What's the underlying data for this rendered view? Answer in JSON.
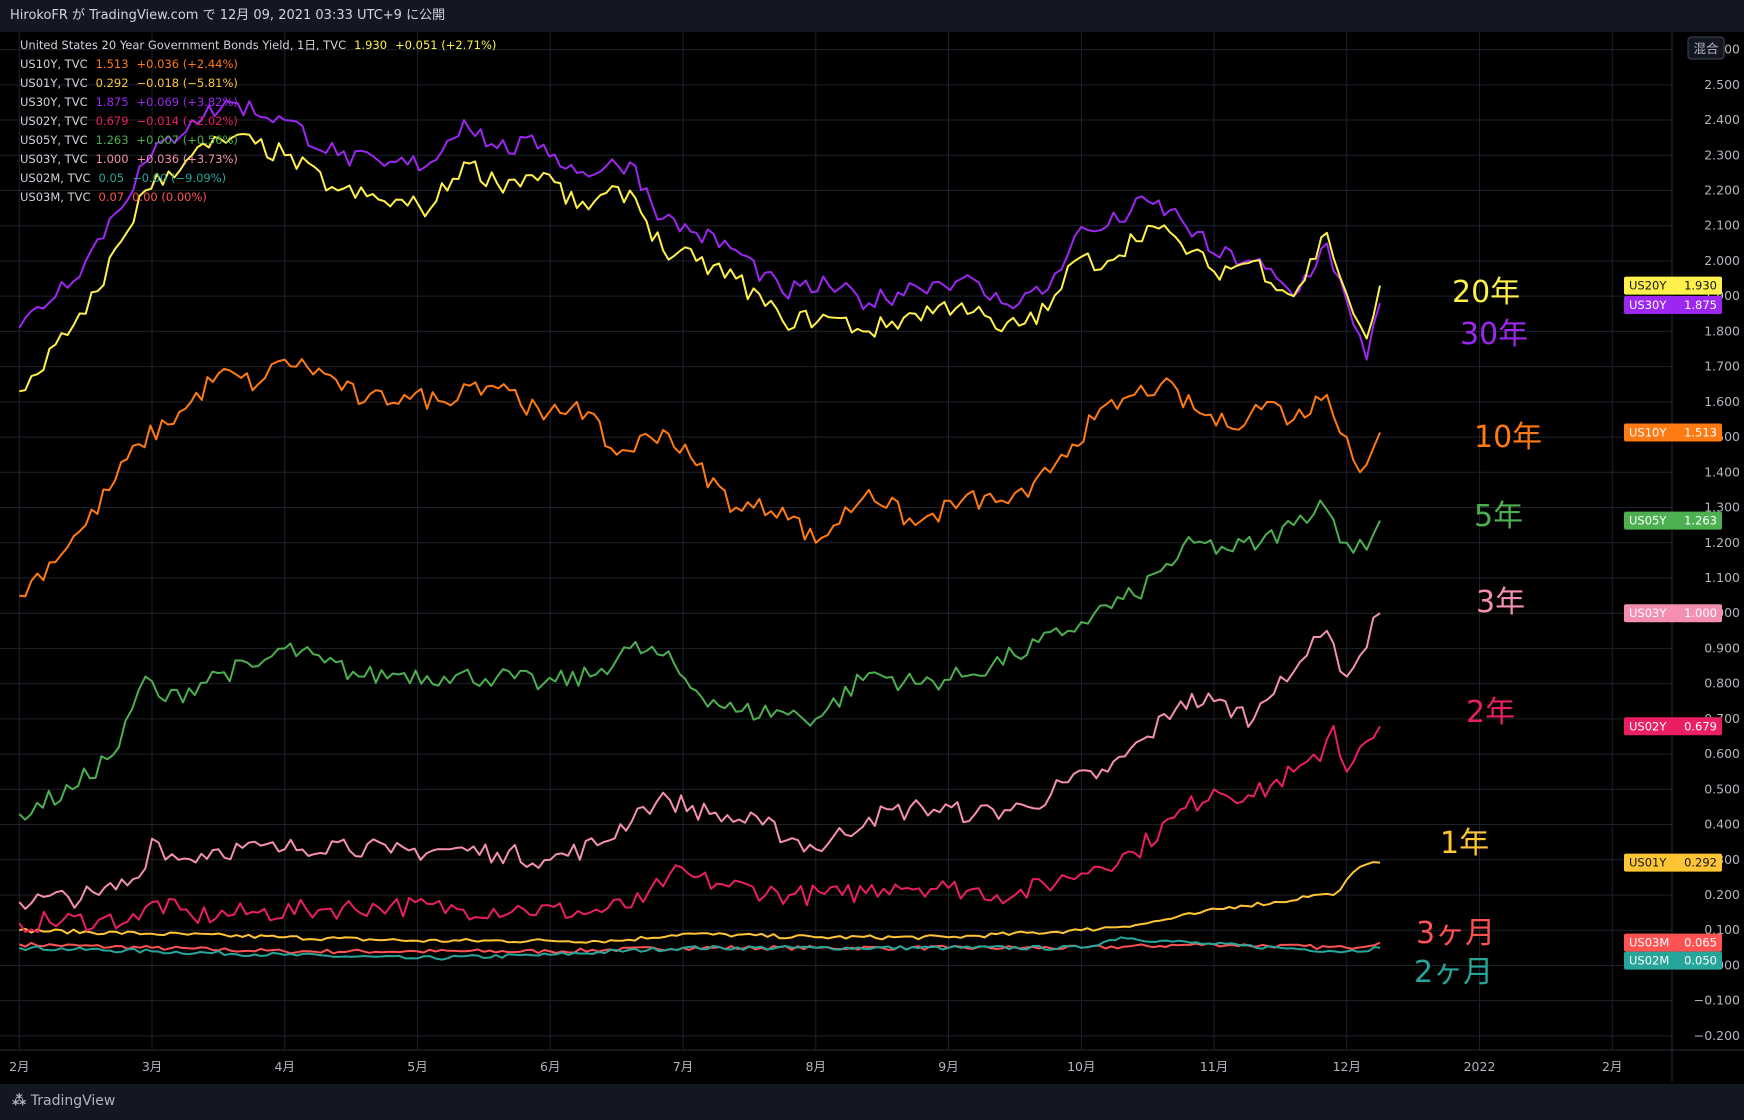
{
  "header": {
    "publisher": "HirokoFR が TradingView.com で 12月 09, 2021 03:33 UTC+9 に公開"
  },
  "footer": {
    "brand": "TradingView"
  },
  "scale_button": "混合",
  "colors": {
    "bg": "#000000",
    "grid": "#1e222d",
    "axis_text": "#b2b5be",
    "US20Y": "#fff04b",
    "US30Y": "#9c27f0",
    "US10Y": "#ff7a12",
    "US05Y": "#4caf50",
    "US03Y": "#f48fb1",
    "US02Y": "#e91e63",
    "US01Y": "#ffc535",
    "US03M": "#ff5252",
    "US02M": "#26a69a"
  },
  "legend": [
    {
      "sym": "United States 20 Year Government Bonds Yield, 1日, TVC",
      "val": "1.930",
      "chg": "+0.051 (+2.71%)",
      "key": "US20Y"
    },
    {
      "sym": "US10Y, TVC",
      "val": "1.513",
      "chg": "+0.036 (+2.44%)",
      "key": "US10Y"
    },
    {
      "sym": "US01Y, TVC",
      "val": "0.292",
      "chg": "−0.018 (−5.81%)",
      "key": "US01Y"
    },
    {
      "sym": "US30Y, TVC",
      "val": "1.875",
      "chg": "+0.069 (+3.82%)",
      "key": "US30Y"
    },
    {
      "sym": "US02Y, TVC",
      "val": "0.679",
      "chg": "−0.014 (−2.02%)",
      "key": "US02Y"
    },
    {
      "sym": "US05Y, TVC",
      "val": "1.263",
      "chg": "+0.007 (+0.56%)",
      "key": "US05Y"
    },
    {
      "sym": "US03Y, TVC",
      "val": "1.000",
      "chg": "+0.036 (+3.73%)",
      "key": "US03Y"
    },
    {
      "sym": "US02M, TVC",
      "val": "0.05",
      "chg": "−0.00 (−9.09%)",
      "key": "US02M"
    },
    {
      "sym": "US03M, TVC",
      "val": "0.07",
      "chg": "0.00 (0.00%)",
      "key": "US03M"
    }
  ],
  "annotations": [
    {
      "text": "20年",
      "key": "US20Y"
    },
    {
      "text": "30年",
      "key": "US30Y"
    },
    {
      "text": "10年",
      "key": "US10Y"
    },
    {
      "text": "5年",
      "key": "US05Y"
    },
    {
      "text": "3年",
      "key": "US03Y"
    },
    {
      "text": "2年",
      "key": "US02Y"
    },
    {
      "text": "1年",
      "key": "US01Y"
    },
    {
      "text": "3ヶ月",
      "key": "US03M"
    },
    {
      "text": "2ヶ月",
      "key": "US02M"
    }
  ],
  "chart_data": {
    "type": "line",
    "x_tick_labels": [
      "2月",
      "3月",
      "4月",
      "5月",
      "6月",
      "7月",
      "8月",
      "9月",
      "10月",
      "11月",
      "12月",
      "2022",
      "2月"
    ],
    "x_tick_month_index": [
      0,
      1,
      2,
      3,
      4,
      5,
      6,
      7,
      8,
      9,
      10,
      11,
      12
    ],
    "x_range_months": [
      -0.07,
      12.45
    ],
    "y_ticks": [
      "2.600",
      "2.500",
      "2.400",
      "2.300",
      "2.200",
      "2.100",
      "2.000",
      "1.900",
      "1.800",
      "1.700",
      "1.600",
      "1.500",
      "1.400",
      "1.300",
      "1.200",
      "1.100",
      "1.000",
      "0.900",
      "0.800",
      "0.700",
      "0.600",
      "0.500",
      "0.400",
      "0.300",
      "0.200",
      "0.100",
      "0.000",
      "−0.100",
      "−0.200"
    ],
    "y_range": [
      -0.24,
      2.65
    ],
    "grid": true,
    "series": [
      {
        "name": "US20Y",
        "label": "US20Y",
        "last": "1.930",
        "x": [
          0,
          0.5,
          0.95,
          1.3,
          1.6,
          2.0,
          2.4,
          2.75,
          3.1,
          3.35,
          3.6,
          3.95,
          4.2,
          4.6,
          4.85,
          5.1,
          5.4,
          5.75,
          6.1,
          6.4,
          6.75,
          7.1,
          7.4,
          7.75,
          7.95,
          8.2,
          8.5,
          8.75,
          9.0,
          9.3,
          9.6,
          9.85,
          10.05,
          10.15,
          10.25
        ],
        "y": [
          1.63,
          1.85,
          2.2,
          2.3,
          2.35,
          2.3,
          2.2,
          2.17,
          2.15,
          2.28,
          2.22,
          2.25,
          2.15,
          2.2,
          2.03,
          2.0,
          1.95,
          1.83,
          1.84,
          1.8,
          1.85,
          1.88,
          1.8,
          1.86,
          2.0,
          2.0,
          2.1,
          2.05,
          1.97,
          2.0,
          1.9,
          2.08,
          1.85,
          1.78,
          1.93
        ]
      },
      {
        "name": "US30Y",
        "label": "US30Y",
        "last": "1.875",
        "x": [
          0,
          0.5,
          0.95,
          1.3,
          1.6,
          2.0,
          2.4,
          2.75,
          3.1,
          3.35,
          3.6,
          3.95,
          4.2,
          4.6,
          4.85,
          5.1,
          5.4,
          5.75,
          6.1,
          6.4,
          6.75,
          7.1,
          7.4,
          7.75,
          7.95,
          8.2,
          8.5,
          8.75,
          9.0,
          9.3,
          9.6,
          9.85,
          10.05,
          10.15,
          10.25
        ],
        "y": [
          1.81,
          2.0,
          2.28,
          2.4,
          2.45,
          2.4,
          2.3,
          2.27,
          2.28,
          2.4,
          2.32,
          2.33,
          2.25,
          2.28,
          2.12,
          2.08,
          2.03,
          1.91,
          1.93,
          1.88,
          1.93,
          1.95,
          1.88,
          1.92,
          2.07,
          2.1,
          2.17,
          2.12,
          2.02,
          2.0,
          1.9,
          2.05,
          1.82,
          1.72,
          1.88
        ]
      },
      {
        "name": "US10Y",
        "label": "US10Y",
        "last": "1.513",
        "x": [
          0,
          0.5,
          0.9,
          1.25,
          1.5,
          1.8,
          2.0,
          2.3,
          2.6,
          2.9,
          3.2,
          3.35,
          3.65,
          3.95,
          4.2,
          4.5,
          4.85,
          5.1,
          5.4,
          5.75,
          6.0,
          6.4,
          6.75,
          7.1,
          7.4,
          7.6,
          7.85,
          8.1,
          8.4,
          8.6,
          8.85,
          9.1,
          9.4,
          9.6,
          9.85,
          10.0,
          10.1,
          10.25
        ],
        "y": [
          1.05,
          1.25,
          1.48,
          1.58,
          1.68,
          1.65,
          1.72,
          1.68,
          1.6,
          1.62,
          1.6,
          1.65,
          1.65,
          1.55,
          1.6,
          1.45,
          1.52,
          1.42,
          1.3,
          1.3,
          1.2,
          1.35,
          1.25,
          1.32,
          1.32,
          1.33,
          1.45,
          1.55,
          1.62,
          1.65,
          1.58,
          1.53,
          1.6,
          1.55,
          1.62,
          1.5,
          1.4,
          1.513
        ]
      },
      {
        "name": "US05Y",
        "label": "US05Y",
        "last": "1.263",
        "x": [
          0,
          0.4,
          0.75,
          0.95,
          1.1,
          1.5,
          1.8,
          2.0,
          2.3,
          2.6,
          2.9,
          3.2,
          3.6,
          3.95,
          4.3,
          4.6,
          4.85,
          5.1,
          5.4,
          5.75,
          6.0,
          6.4,
          6.75,
          7.1,
          7.5,
          7.9,
          8.1,
          8.4,
          8.6,
          8.85,
          9.1,
          9.35,
          9.6,
          9.8,
          10.0,
          10.15,
          10.25
        ],
        "y": [
          0.43,
          0.5,
          0.62,
          0.82,
          0.75,
          0.83,
          0.85,
          0.9,
          0.86,
          0.82,
          0.83,
          0.82,
          0.82,
          0.8,
          0.82,
          0.9,
          0.88,
          0.78,
          0.72,
          0.72,
          0.7,
          0.83,
          0.8,
          0.82,
          0.88,
          0.95,
          1.0,
          1.05,
          1.12,
          1.2,
          1.18,
          1.2,
          1.25,
          1.32,
          1.2,
          1.18,
          1.263
        ]
      },
      {
        "name": "US03Y",
        "label": "US03Y",
        "last": "1.000",
        "x": [
          0,
          0.6,
          0.9,
          1.0,
          1.2,
          1.5,
          2.0,
          2.4,
          2.8,
          3.2,
          3.6,
          4.0,
          4.4,
          4.7,
          4.9,
          5.2,
          5.6,
          6.0,
          6.4,
          6.8,
          7.2,
          7.6,
          7.9,
          8.2,
          8.5,
          8.75,
          9.0,
          9.3,
          9.5,
          9.7,
          9.85,
          10.0,
          10.1,
          10.25
        ],
        "y": [
          0.18,
          0.2,
          0.25,
          0.36,
          0.3,
          0.33,
          0.33,
          0.35,
          0.32,
          0.33,
          0.32,
          0.3,
          0.35,
          0.45,
          0.47,
          0.43,
          0.4,
          0.33,
          0.42,
          0.45,
          0.43,
          0.45,
          0.52,
          0.55,
          0.65,
          0.75,
          0.75,
          0.7,
          0.82,
          0.88,
          0.95,
          0.82,
          0.88,
          1.0
        ]
      },
      {
        "name": "US02Y",
        "label": "US02Y",
        "last": "0.679",
        "x": [
          0,
          0.6,
          0.9,
          1.0,
          1.3,
          1.8,
          2.3,
          2.8,
          3.3,
          3.8,
          4.3,
          4.7,
          4.9,
          5.3,
          5.8,
          6.2,
          6.6,
          7.0,
          7.5,
          7.9,
          8.1,
          8.4,
          8.7,
          9.0,
          9.3,
          9.6,
          9.8,
          9.9,
          10.0,
          10.1,
          10.25
        ],
        "y": [
          0.12,
          0.13,
          0.13,
          0.18,
          0.14,
          0.15,
          0.16,
          0.17,
          0.16,
          0.16,
          0.15,
          0.18,
          0.26,
          0.23,
          0.2,
          0.2,
          0.23,
          0.22,
          0.2,
          0.25,
          0.28,
          0.32,
          0.42,
          0.5,
          0.48,
          0.55,
          0.58,
          0.68,
          0.55,
          0.62,
          0.679
        ]
      },
      {
        "name": "US01Y",
        "label": "US01Y",
        "last": "0.292",
        "x": [
          0,
          1.0,
          2.0,
          3.0,
          4.0,
          4.5,
          5.0,
          6.0,
          7.0,
          8.0,
          8.5,
          8.9,
          9.2,
          9.5,
          9.75,
          9.9,
          10.1,
          10.25
        ],
        "y": [
          0.1,
          0.09,
          0.08,
          0.07,
          0.07,
          0.07,
          0.09,
          0.08,
          0.08,
          0.1,
          0.12,
          0.15,
          0.17,
          0.18,
          0.2,
          0.2,
          0.28,
          0.292
        ]
      },
      {
        "name": "US03M",
        "label": "US03M",
        "last": "0.065",
        "x": [
          0,
          1.0,
          2.0,
          3.0,
          4.0,
          5.0,
          6.0,
          7.0,
          8.0,
          9.0,
          10.0,
          10.25
        ],
        "y": [
          0.06,
          0.05,
          0.04,
          0.04,
          0.04,
          0.05,
          0.05,
          0.05,
          0.05,
          0.06,
          0.05,
          0.065
        ]
      },
      {
        "name": "US02M",
        "label": "US02M",
        "last": "0.050",
        "x": [
          0,
          1.0,
          2.0,
          3.0,
          4.0,
          5.0,
          6.0,
          7.0,
          8.0,
          8.3,
          8.6,
          9.0,
          9.5,
          10.0,
          10.25
        ],
        "y": [
          0.05,
          0.04,
          0.03,
          0.02,
          0.03,
          0.05,
          0.05,
          0.05,
          0.05,
          0.08,
          0.07,
          0.06,
          0.05,
          0.04,
          0.05
        ]
      }
    ]
  }
}
